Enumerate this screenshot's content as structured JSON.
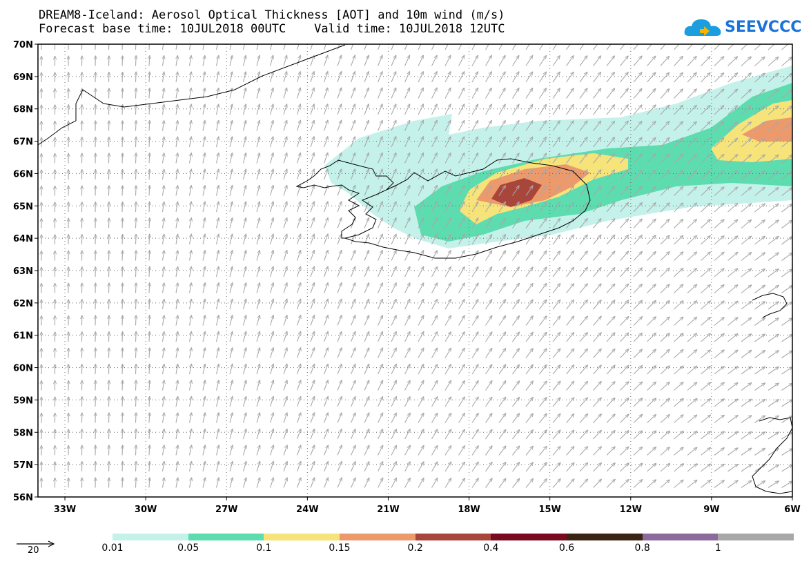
{
  "title_line1": "DREAM8-Iceland: Aerosol Optical Thickness [AOT] and 10m wind (m/s)",
  "title_line2": "Forecast base time: 10JUL2018 00UTC    Valid time: 10JUL2018 12UTC",
  "logo_text": "SEEVCCC",
  "map": {
    "lon_range": [
      -34,
      -6
    ],
    "lat_range": [
      56,
      70
    ],
    "lon_labels": [
      "33W",
      "30W",
      "27W",
      "24W",
      "21W",
      "18W",
      "15W",
      "12W",
      "9W",
      "6W"
    ],
    "lon_values": [
      -33,
      -30,
      -27,
      -24,
      -21,
      -18,
      -15,
      -12,
      -9,
      -6
    ],
    "lat_labels": [
      "56N",
      "57N",
      "58N",
      "59N",
      "60N",
      "61N",
      "62N",
      "63N",
      "64N",
      "65N",
      "66N",
      "67N",
      "68N",
      "69N",
      "70N"
    ],
    "lat_values": [
      56,
      57,
      58,
      59,
      60,
      61,
      62,
      63,
      64,
      65,
      66,
      67,
      68,
      69,
      70
    ],
    "vector_color": "#a8a8a8",
    "coast_color": "#000000"
  },
  "wind_scale": {
    "value": "20"
  },
  "legend": {
    "colors": [
      "#c4f2ea",
      "#5ddcb0",
      "#f6e47a",
      "#ec9a6c",
      "#a8463c",
      "#7a0a22",
      "#3a2414",
      "#8c6a9c",
      "#a8a8a8"
    ],
    "labels": [
      "0.01",
      "0.05",
      "0.1",
      "0.15",
      "0.2",
      "0.4",
      "0.6",
      "0.8",
      "1"
    ]
  }
}
